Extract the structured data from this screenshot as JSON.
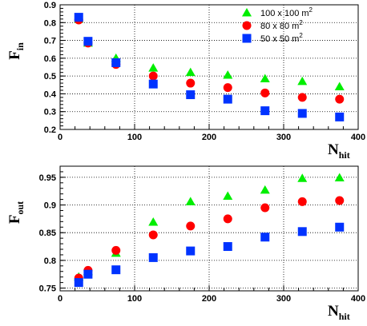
{
  "chart_data": [
    {
      "type": "scatter",
      "ylabel": "F",
      "ylabel_sub": "in",
      "xlabel": "N",
      "xlabel_sub": "hit",
      "xlim": [
        0,
        400
      ],
      "ylim": [
        0.2,
        0.9
      ],
      "xticks": [
        0,
        100,
        200,
        300,
        400
      ],
      "yticks": [
        0.2,
        0.3,
        0.4,
        0.5,
        0.6,
        0.7,
        0.8,
        0.9
      ],
      "ytick_labels": [
        "0.2",
        "0.3",
        "0.4",
        "0.5",
        "0.6",
        "0.7",
        "0.8",
        "0.9"
      ],
      "grid": true,
      "legend_position": "top-right",
      "x": [
        25,
        37.5,
        75,
        125,
        175,
        225,
        275,
        325,
        375
      ],
      "series": [
        {
          "name": "100 x 100 m",
          "name_sup": "2",
          "marker": "triangle",
          "color": "#00ee00",
          "values": [
            0.82,
            0.685,
            0.6,
            0.545,
            0.52,
            0.505,
            0.485,
            0.47,
            0.44
          ]
        },
        {
          "name": "80 x 80 m",
          "name_sup": "2",
          "marker": "circle",
          "color": "#ff0000",
          "values": [
            0.815,
            0.685,
            0.565,
            0.5,
            0.46,
            0.435,
            0.405,
            0.38,
            0.37
          ]
        },
        {
          "name": "50 x 50 m",
          "name_sup": "2",
          "marker": "square",
          "color": "#0033ff",
          "values": [
            0.83,
            0.695,
            0.575,
            0.455,
            0.395,
            0.37,
            0.305,
            0.29,
            0.27
          ]
        }
      ]
    },
    {
      "type": "scatter",
      "ylabel": "F",
      "ylabel_sub": "out",
      "xlabel": "N",
      "xlabel_sub": "hit",
      "xlim": [
        0,
        400
      ],
      "ylim": [
        0.745,
        0.97
      ],
      "xticks": [
        0,
        100,
        200,
        300,
        400
      ],
      "yticks": [
        0.75,
        0.8,
        0.85,
        0.9,
        0.95
      ],
      "ytick_labels": [
        "0.75",
        "0.8",
        "0.85",
        "0.9",
        "0.95"
      ],
      "grid": true,
      "x": [
        25,
        37.5,
        75,
        125,
        175,
        225,
        275,
        325,
        375
      ],
      "series": [
        {
          "name": "100 x 100 m",
          "marker": "triangle",
          "color": "#00ee00",
          "values": [
            0.77,
            0.78,
            0.813,
            0.869,
            0.906,
            0.916,
            0.927,
            0.948,
            0.949
          ]
        },
        {
          "name": "80 x 80 m",
          "marker": "circle",
          "color": "#ff0000",
          "values": [
            0.768,
            0.782,
            0.818,
            0.846,
            0.862,
            0.875,
            0.895,
            0.906,
            0.908
          ]
        },
        {
          "name": "50 x 50 m",
          "marker": "square",
          "color": "#0033ff",
          "values": [
            0.76,
            0.775,
            0.783,
            0.805,
            0.817,
            0.825,
            0.842,
            0.852,
            0.86
          ]
        }
      ]
    }
  ]
}
